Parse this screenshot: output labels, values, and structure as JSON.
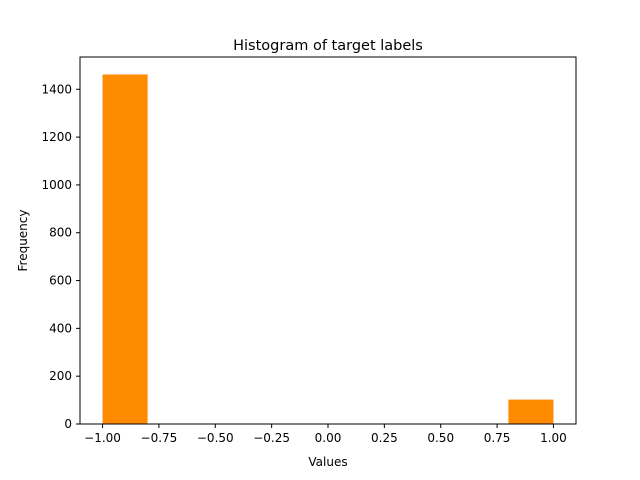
{
  "chart_data": {
    "type": "bar",
    "subtype": "histogram",
    "title": "Histogram of target labels",
    "xlabel": "Values",
    "ylabel": "Frequency",
    "xlim": [
      -1.1,
      1.1
    ],
    "ylim": [
      0,
      1535
    ],
    "xticks": [
      {
        "value": -1.0,
        "label": "−1.00"
      },
      {
        "value": -0.75,
        "label": "−0.75"
      },
      {
        "value": -0.5,
        "label": "−0.50"
      },
      {
        "value": -0.25,
        "label": "−0.25"
      },
      {
        "value": 0.0,
        "label": "0.00"
      },
      {
        "value": 0.25,
        "label": "0.25"
      },
      {
        "value": 0.5,
        "label": "0.50"
      },
      {
        "value": 0.75,
        "label": "0.75"
      },
      {
        "value": 1.0,
        "label": "1.00"
      }
    ],
    "yticks": [
      {
        "value": 0,
        "label": "0"
      },
      {
        "value": 200,
        "label": "200"
      },
      {
        "value": 400,
        "label": "400"
      },
      {
        "value": 600,
        "label": "600"
      },
      {
        "value": 800,
        "label": "800"
      },
      {
        "value": 1000,
        "label": "1000"
      },
      {
        "value": 1200,
        "label": "1200"
      },
      {
        "value": 1400,
        "label": "1400"
      }
    ],
    "bin_edges": [
      -1.0,
      -0.8,
      -0.6,
      -0.4,
      -0.2,
      0.0,
      0.2,
      0.4,
      0.6,
      0.8,
      1.0
    ],
    "counts": [
      1462,
      0,
      0,
      0,
      0,
      0,
      0,
      0,
      0,
      102
    ],
    "bar_color": "#ff8c00",
    "grid": false,
    "legend": "none"
  }
}
